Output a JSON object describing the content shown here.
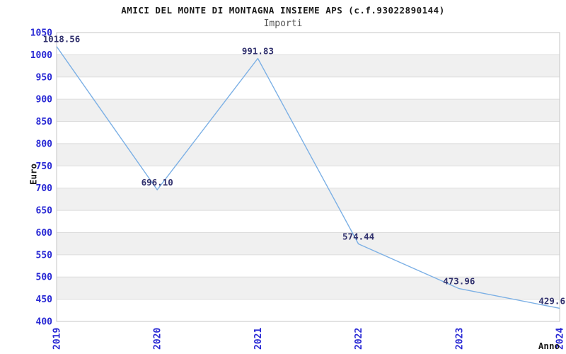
{
  "chart_data": {
    "type": "line",
    "title": "AMICI DEL MONTE DI MONTAGNA INSIEME APS (c.f.93022890144)",
    "subtitle": "Importi",
    "xlabel": "Anno",
    "ylabel": "Euro",
    "categories": [
      "2019",
      "2020",
      "2021",
      "2022",
      "2023",
      "2024"
    ],
    "series": [
      {
        "name": "Importi",
        "values": [
          1018.56,
          696.1,
          991.83,
          574.44,
          473.96,
          429.6
        ]
      }
    ],
    "point_labels": [
      "1018.56",
      "696.10",
      "991.83",
      "574.44",
      "473.96",
      "429.6"
    ],
    "ylim": [
      400,
      1050
    ],
    "ytick_step": 50,
    "grid": "horizontal-gridlines",
    "plot_background": "alternating-bands",
    "legend": "none",
    "colors": {
      "line": "#7cb0e5",
      "tick_label": "#2828d4",
      "point_label": "#32326e",
      "band": "#f0f0f0",
      "gridline": "#dcdcdc",
      "border": "#c6c6c6",
      "title": "#1a1a1a",
      "subtitle": "#555555",
      "axis_title": "#1a1a1a"
    }
  }
}
